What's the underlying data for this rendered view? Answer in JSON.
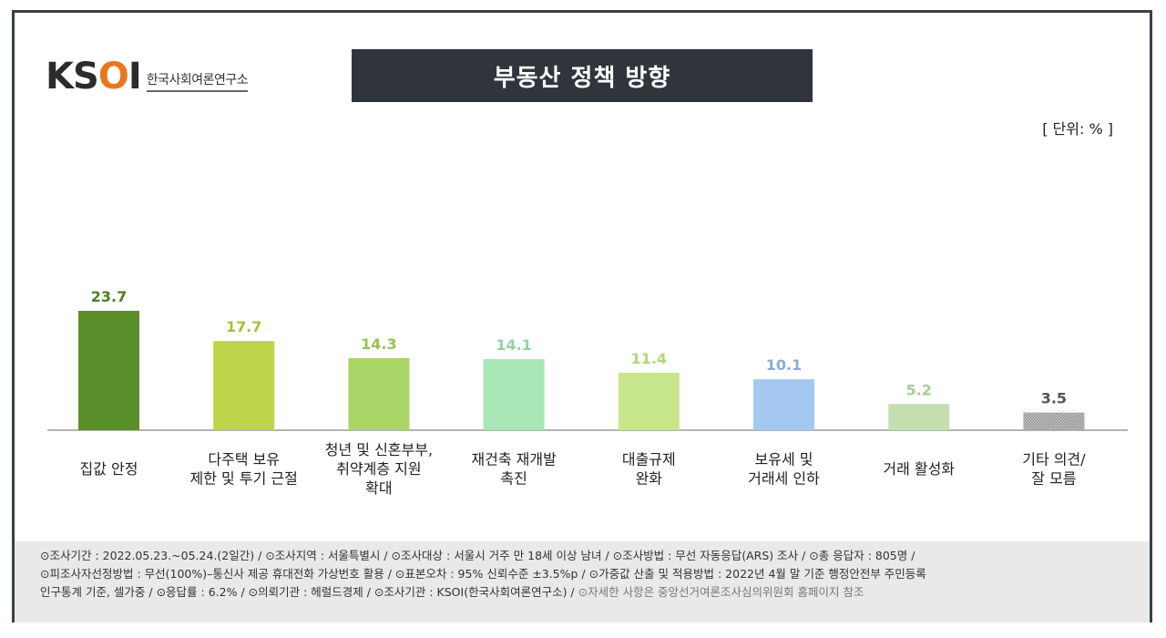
{
  "logo": {
    "mark_left": "KS",
    "mark_accent": "O",
    "mark_right": "I",
    "org_name": "한국사회여론연구소"
  },
  "title": "부동산 정책 방향",
  "unit_label": "[ 단위: % ]",
  "chart_data": {
    "type": "bar",
    "title": "부동산 정책 방향",
    "unit": "%",
    "categories": [
      [
        "집값 안정"
      ],
      [
        "다주택 보유",
        "제한 및 투기 근절"
      ],
      [
        "청년 및 신혼부부,",
        "취약계층 지원",
        "확대"
      ],
      [
        "재건축 재개발",
        "촉진"
      ],
      [
        "대출규제",
        "완화"
      ],
      [
        "보유세 및",
        "거래세 인하"
      ],
      [
        "거래 활성화"
      ],
      [
        "기타 의견/",
        "잘 모름"
      ]
    ],
    "values": [
      23.7,
      17.7,
      14.3,
      14.1,
      11.4,
      10.1,
      5.2,
      3.5
    ],
    "colors": [
      "#5b8f2c",
      "#bfd44a",
      "#a9d466",
      "#a9e6b5",
      "#c7e68c",
      "#a5c8f0",
      "#c3dfb0",
      "#b0b0b0"
    ],
    "label_colors": [
      "#4d7f26",
      "#a8c239",
      "#95c44f",
      "#8fd49e",
      "#b2d875",
      "#87acd8",
      "#a7cc93",
      "#555555"
    ],
    "ylim": [
      0,
      30
    ],
    "grid": false
  },
  "footer": {
    "line1": "⊙조사기간 : 2022.05.23.~05.24.(2일간)  / ⊙조사지역 : 서울특별시 / ⊙조사대상 : 서울시 거주 만 18세 이상 남녀 / ⊙조사방법 : 무선 자동응답(ARS)  조사 / ⊙총 응답자 : 805명 /",
    "line2": "⊙피조사자선정방법 : 무선(100%)–통신사 제공 휴대전화 가상번호 활용 / ⊙표본오차 : 95% 신뢰수준 ±3.5%p / ⊙가중값 산출 및 적용방법 : 2022년 4월 말 기준  행정안전부 주민등록",
    "line3": "인구통계 기준, 셀가중 / ⊙응답률 : 6.2% / ⊙의뢰기관 : 헤럴드경제 / ⊙조사기관 : KSOI(한국사회여론연구소) /",
    "line3_muted": "⊙자세한 사항은 중앙선거여론조사심의위원회 홈페이지 참조"
  }
}
